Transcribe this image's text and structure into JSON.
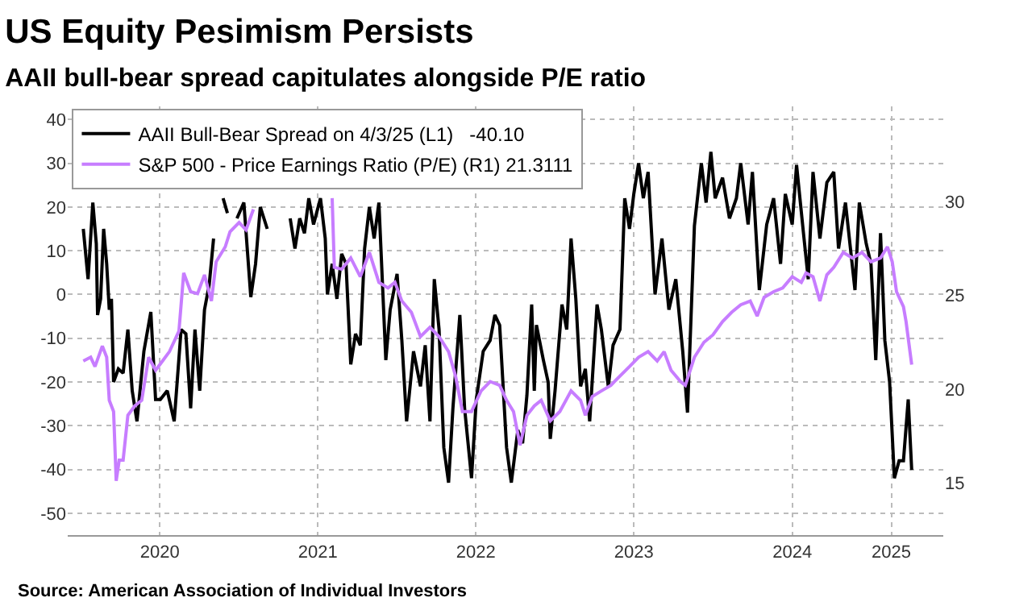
{
  "chart_data": {
    "type": "line",
    "title": "US Equity Pesimism Persists",
    "subtitle": "AAII bull-bear spread capitulates alongside P/E ratio",
    "annotations": [
      "Source: American Association of Individual Investors"
    ],
    "xlim": [
      "2019-12-01",
      "2025-06-15"
    ],
    "xticks": [
      {
        "value": "2020-07-01",
        "label": "2020"
      },
      {
        "value": "2021-07-01",
        "label": "2021"
      },
      {
        "value": "2022-07-01",
        "label": "2022"
      },
      {
        "value": "2023-07-01",
        "label": "2023"
      },
      {
        "value": "2024-07-01",
        "label": "2024"
      },
      {
        "value": "2025-02-15",
        "label": "2025"
      }
    ],
    "ylim": [
      -55,
      43
    ],
    "yticks": [
      -50,
      -40,
      -30,
      -20,
      -10,
      0,
      10,
      20,
      30,
      40
    ],
    "y2lim": [
      12.2,
      35.1
    ],
    "y2ticks": [
      15,
      20,
      25,
      30
    ],
    "grid": true,
    "legend": "top left",
    "marker": "none",
    "line_style": "solid",
    "series": [
      {
        "name": "AAII Bull-Bear Spread on 4/3/25 (L1)   -40.10",
        "color": "#000000",
        "axis": "y",
        "x": [
          "2020-01-06",
          "2020-01-17",
          "2020-01-28",
          "2020-02-05",
          "2020-02-08",
          "2020-02-15",
          "2020-02-22",
          "2020-02-29",
          "2020-03-06",
          "2020-03-11",
          "2020-03-16",
          "2020-03-27",
          "2020-04-07",
          "2020-04-18",
          "2020-04-28",
          "2020-05-09",
          "2020-05-25",
          "2020-06-10",
          "2020-06-21",
          "2020-07-02",
          "2020-07-18",
          "2020-08-03",
          "2020-08-19",
          "2020-08-30",
          "2020-09-10",
          "2020-09-20",
          "2020-10-01",
          "2020-10-12",
          "2020-10-23",
          "2020-11-02",
          "2020-11-13",
          "2020-11-24",
          "2020-12-04",
          "2020-12-15",
          "2020-12-26",
          "2021-01-11",
          "2021-01-27",
          "2021-02-07",
          "2021-02-18",
          "2021-03-06",
          "2021-03-17",
          "2021-04-02",
          "2021-04-18",
          "2021-04-28",
          "2021-05-09",
          "2021-05-20",
          "2021-05-31",
          "2021-06-10",
          "2021-06-21",
          "2021-07-07",
          "2021-07-18",
          "2021-07-23",
          "2021-08-03",
          "2021-08-14",
          "2021-08-25",
          "2021-09-04",
          "2021-09-15",
          "2021-09-26",
          "2021-10-07",
          "2021-10-17",
          "2021-10-28",
          "2021-11-08",
          "2021-11-19",
          "2021-12-05",
          "2021-12-15",
          "2021-12-31",
          "2022-01-11",
          "2022-01-22",
          "2022-02-07",
          "2022-02-23",
          "2022-03-06",
          "2022-03-17",
          "2022-03-27",
          "2022-04-07",
          "2022-04-18",
          "2022-04-29",
          "2022-05-09",
          "2022-05-25",
          "2022-06-05",
          "2022-06-21",
          "2022-07-02",
          "2022-07-18",
          "2022-08-03",
          "2022-08-14",
          "2022-08-25",
          "2022-09-10",
          "2022-09-21",
          "2022-10-06",
          "2022-10-17",
          "2022-10-27",
          "2022-11-07",
          "2022-11-13",
          "2022-11-18",
          "2022-12-04",
          "2022-12-15",
          "2022-12-20",
          "2022-12-31",
          "2023-01-16",
          "2023-01-27",
          "2023-02-06",
          "2023-02-17",
          "2023-02-28",
          "2023-03-11",
          "2023-03-21",
          "2023-04-07",
          "2023-04-17",
          "2023-05-03",
          "2023-05-14",
          "2023-05-30",
          "2023-06-10",
          "2023-06-21",
          "2023-07-01",
          "2023-07-12",
          "2023-07-23",
          "2023-08-03",
          "2023-08-19",
          "2023-09-04",
          "2023-09-20",
          "2023-10-06",
          "2023-10-22",
          "2023-11-02",
          "2023-11-18",
          "2023-12-04",
          "2023-12-15",
          "2023-12-26",
          "2024-01-05",
          "2024-01-22",
          "2024-02-07",
          "2024-02-23",
          "2024-03-04",
          "2024-03-21",
          "2024-03-31",
          "2024-04-16",
          "2024-05-03",
          "2024-05-19",
          "2024-06-04",
          "2024-06-15",
          "2024-07-01",
          "2024-07-11",
          "2024-07-27",
          "2024-08-07",
          "2024-08-18",
          "2024-09-03",
          "2024-09-19",
          "2024-10-05",
          "2024-10-16",
          "2024-11-01",
          "2024-11-23",
          "2024-12-03",
          "2024-12-19",
          "2024-12-30",
          "2025-01-10",
          "2025-01-21",
          "2025-01-31",
          "2025-02-11",
          "2025-02-22",
          "2025-03-05",
          "2025-03-15",
          "2025-03-26",
          "2025-04-03"
        ],
        "values": [
          15,
          3.5,
          21,
          11.6,
          -4.7,
          -1,
          15,
          7,
          -3.5,
          -1,
          -20,
          -17,
          -18,
          -8,
          -22,
          -29,
          -13,
          -4,
          -24,
          -24,
          -22,
          -29,
          -8,
          -9,
          -26,
          -8,
          -22,
          -3.5,
          2.3,
          12.8,
          null,
          22,
          18.6,
          null,
          17.4,
          21,
          -0.6,
          7,
          20,
          15,
          null,
          null,
          null,
          17.4,
          10.5,
          17.4,
          14,
          22,
          16,
          22,
          12.8,
          0,
          7,
          -1,
          9.3,
          7,
          -16,
          -9,
          -11.6,
          10.5,
          20,
          12.8,
          21,
          -15,
          -3.5,
          4.7,
          -10.5,
          -29,
          -13,
          -21,
          -11.6,
          -29,
          3.5,
          -8,
          -35,
          -43,
          -26,
          -4.7,
          -26,
          -42,
          -24,
          -13,
          -10.5,
          -4.7,
          -7,
          -35,
          -43,
          -31,
          -34,
          -23,
          -2.3,
          -22,
          -7,
          -15,
          -20,
          -33,
          -22,
          -2.3,
          -8,
          12.8,
          -1,
          -21,
          -17,
          -29,
          -2.3,
          -8,
          -21,
          -11.6,
          -8,
          22,
          15,
          23,
          30,
          22,
          28,
          0,
          12.8,
          -3.5,
          3.5,
          -13,
          -27,
          15.7,
          30,
          21,
          32.6,
          22,
          26.7,
          17.4,
          22,
          30,
          16,
          28,
          1,
          16,
          22,
          7,
          23,
          16,
          29.6,
          14,
          3.5,
          28,
          12.8,
          25.6,
          28,
          10.5,
          21,
          1,
          21,
          11.6,
          7,
          -15,
          14,
          -10.5,
          -20,
          -42,
          -38,
          -38,
          -24,
          -40.1
        ]
      },
      {
        "name": "S&P 500 - Price Earnings Ratio (P/E) (R1) 21.3111",
        "color": "#c77dff",
        "axis": "y2",
        "x": [
          "2020-01-06",
          "2020-01-23",
          "2020-02-02",
          "2020-02-19",
          "2020-02-29",
          "2020-03-06",
          "2020-03-16",
          "2020-03-22",
          "2020-03-29",
          "2020-04-07",
          "2020-04-18",
          "2020-05-04",
          "2020-05-20",
          "2020-06-05",
          "2020-06-21",
          "2020-07-07",
          "2020-07-23",
          "2020-08-14",
          "2020-08-25",
          "2020-09-10",
          "2020-09-26",
          "2020-10-12",
          "2020-10-28",
          "2020-11-08",
          "2020-11-29",
          "2020-12-10",
          "2020-12-31",
          "2021-01-16",
          "2021-02-02",
          "2021-02-12",
          "2021-05-20",
          "2021-08-03",
          "2021-08-08",
          "2021-08-25",
          "2021-09-15",
          "2021-10-07",
          "2021-10-28",
          "2021-11-19",
          "2021-12-10",
          "2021-12-26",
          "2022-01-11",
          "2022-02-02",
          "2022-02-23",
          "2022-03-17",
          "2022-04-07",
          "2022-04-29",
          "2022-05-15",
          "2022-05-31",
          "2022-06-21",
          "2022-07-13",
          "2022-08-03",
          "2022-08-25",
          "2022-09-10",
          "2022-09-26",
          "2022-10-11",
          "2022-10-27",
          "2022-11-13",
          "2022-11-29",
          "2022-12-20",
          "2023-01-11",
          "2023-02-06",
          "2023-02-28",
          "2023-03-11",
          "2023-03-27",
          "2023-04-17",
          "2023-05-09",
          "2023-05-30",
          "2023-06-21",
          "2023-07-12",
          "2023-08-03",
          "2023-08-24",
          "2023-09-09",
          "2023-09-25",
          "2023-10-17",
          "2023-10-28",
          "2023-11-18",
          "2023-12-10",
          "2023-12-31",
          "2024-01-22",
          "2024-02-12",
          "2024-03-04",
          "2024-03-26",
          "2024-04-11",
          "2024-04-27",
          "2024-05-19",
          "2024-06-09",
          "2024-07-01",
          "2024-07-22",
          "2024-08-02",
          "2024-08-18",
          "2024-09-03",
          "2024-09-19",
          "2024-10-05",
          "2024-10-27",
          "2024-11-17",
          "2024-12-09",
          "2024-12-30",
          "2025-01-21",
          "2025-02-06",
          "2025-02-17",
          "2025-02-27",
          "2025-03-15",
          "2025-03-21",
          "2025-04-03"
        ],
        "values": [
          21.5,
          21.7,
          21.2,
          22.3,
          21.7,
          19.4,
          18.8,
          15.1,
          16.2,
          16.2,
          18.6,
          19.1,
          19.4,
          21.7,
          21,
          21.5,
          22,
          23.1,
          26.2,
          25.2,
          25.1,
          26.1,
          24.7,
          26.8,
          27.6,
          28.4,
          28.9,
          28.5,
          29.6,
          null,
          null,
          30.2,
          26.5,
          26.4,
          27,
          26,
          27.3,
          25.7,
          25.4,
          25.7,
          24.7,
          24.1,
          22.8,
          23.3,
          22.8,
          22,
          20.7,
          18.8,
          18.8,
          19.9,
          20.4,
          20.2,
          19.4,
          18.8,
          17,
          18.6,
          19.1,
          19.4,
          18.3,
          18.8,
          19.9,
          19.4,
          18.6,
          19.6,
          19.9,
          20.2,
          20.7,
          21.2,
          21.7,
          22,
          21.5,
          22,
          21,
          20.4,
          20.2,
          21.7,
          22.5,
          22.9,
          23.6,
          24.1,
          24.5,
          24.7,
          23.9,
          24.9,
          25.2,
          25.4,
          26,
          25.7,
          26.2,
          26,
          24.7,
          26.1,
          26.5,
          27.3,
          27,
          27.3,
          26.8,
          27,
          27.6,
          26.8,
          25.2,
          24.4,
          23.6,
          21.3
        ]
      }
    ]
  }
}
